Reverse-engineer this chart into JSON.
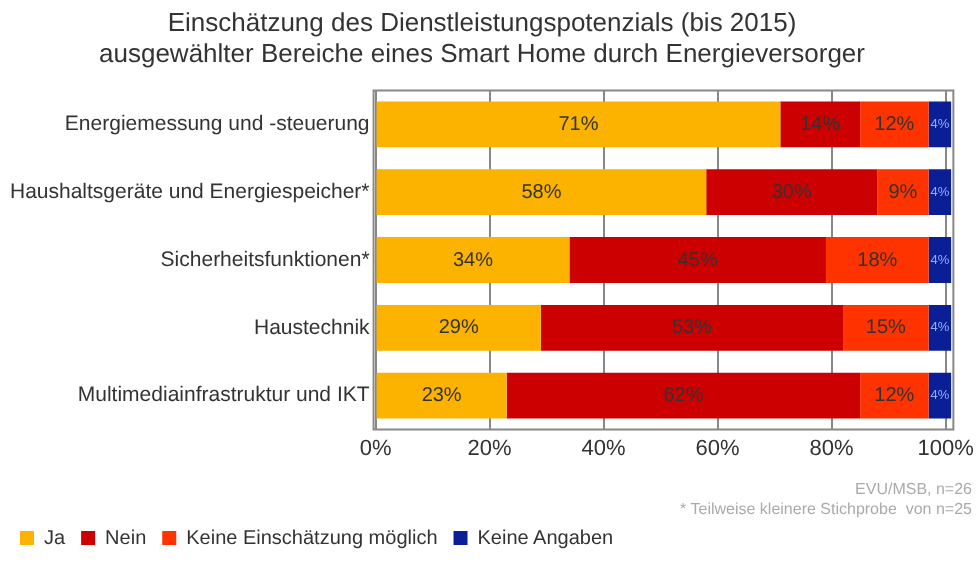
{
  "chart_data": {
    "type": "bar",
    "orientation": "horizontal",
    "stacked": true,
    "title": [
      "Einschätzung des Dienstleistungspotenzials (bis 2015)",
      "ausgewählter Bereiche eines Smart Home durch Energieversorger"
    ],
    "categories": [
      "Energiemessung und -steuerung",
      "Haushaltsgeräte und Energiespeicher*",
      "Sicherheitsfunktionen*",
      "Haustechnik",
      "Multimediainfrastruktur und IKT"
    ],
    "series": [
      {
        "name": "Ja",
        "color": "#fbb300",
        "values": [
          71,
          58,
          34,
          29,
          23
        ],
        "value_labels": [
          "71%",
          "58%",
          "34%",
          "29%",
          "23%"
        ]
      },
      {
        "name": "Nein",
        "color": "#cc0000",
        "values": [
          14,
          30,
          45,
          53,
          62
        ],
        "value_labels": [
          "14%",
          "30%",
          "45%",
          "53%",
          "62%"
        ]
      },
      {
        "name": "Keine Einschätzung möglich",
        "color": "#ff3300",
        "values": [
          12,
          9,
          18,
          15,
          12
        ],
        "value_labels": [
          "12%",
          "9%",
          "18%",
          "15%",
          "12%"
        ]
      },
      {
        "name": "Keine Angaben",
        "color": "#0a1e96",
        "values": [
          4,
          4,
          4,
          4,
          4
        ],
        "value_labels": [
          "4%",
          "4%",
          "4%",
          "4%",
          "4%"
        ]
      }
    ],
    "xlim": [
      0,
      101
    ],
    "xticks": [
      {
        "value": 0,
        "label": "0%"
      },
      {
        "value": 20,
        "label": "20%"
      },
      {
        "value": 40,
        "label": "40%"
      },
      {
        "value": 60,
        "label": "60%"
      },
      {
        "value": 80,
        "label": "80%"
      },
      {
        "value": 100,
        "label": "100%"
      }
    ],
    "grid": "x",
    "legend": "bottom left",
    "annotations": [
      "EVU/MSB, n=26",
      "* Teilweise kleinere Stichprobe  von n=25"
    ]
  }
}
